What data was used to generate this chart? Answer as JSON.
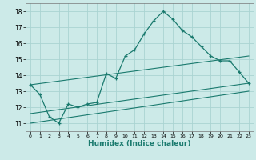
{
  "title": "",
  "xlabel": "Humidex (Indice chaleur)",
  "bg_color": "#cceae8",
  "grid_color": "#aad4d2",
  "line_color": "#1a7a6e",
  "xlim": [
    -0.5,
    23.5
  ],
  "ylim": [
    10.5,
    18.5
  ],
  "xticks": [
    0,
    1,
    2,
    3,
    4,
    5,
    6,
    7,
    8,
    9,
    10,
    11,
    12,
    13,
    14,
    15,
    16,
    17,
    18,
    19,
    20,
    21,
    22,
    23
  ],
  "yticks": [
    11,
    12,
    13,
    14,
    15,
    16,
    17,
    18
  ],
  "main_x": [
    0,
    1,
    2,
    3,
    4,
    5,
    6,
    7,
    8,
    9,
    10,
    11,
    12,
    13,
    14,
    15,
    16,
    17,
    18,
    19,
    20,
    21,
    22,
    23
  ],
  "main_y": [
    13.4,
    12.8,
    11.4,
    11.0,
    12.2,
    12.0,
    12.2,
    12.3,
    14.1,
    13.8,
    15.2,
    15.6,
    16.6,
    17.4,
    18.0,
    17.5,
    16.8,
    16.4,
    15.8,
    15.2,
    14.9,
    14.9,
    14.2,
    13.5
  ],
  "line1_x": [
    0,
    23
  ],
  "line1_y": [
    13.4,
    15.2
  ],
  "line2_x": [
    0,
    23
  ],
  "line2_y": [
    11.6,
    13.5
  ],
  "line3_x": [
    0,
    23
  ],
  "line3_y": [
    11.0,
    13.0
  ]
}
